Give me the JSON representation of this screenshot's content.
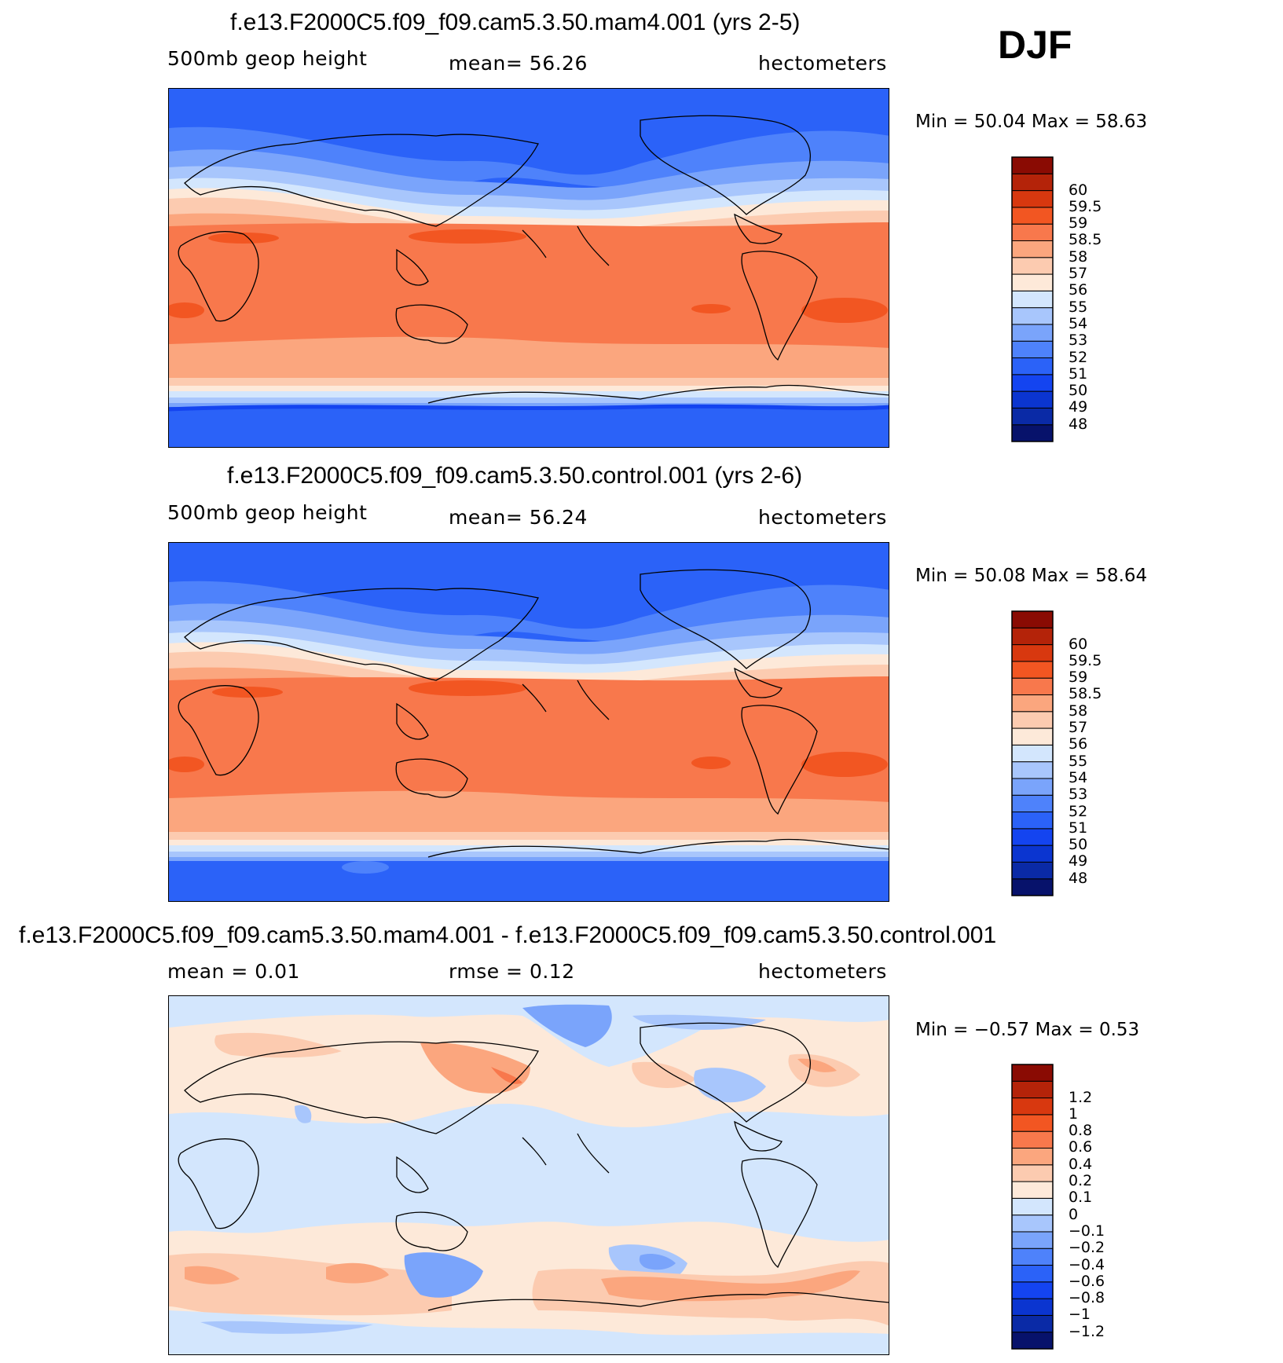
{
  "season": "DJF",
  "panels": [
    {
      "title": "f.e13.F2000C5.f09_f09.cam5.3.50.mam4.001 (yrs 2-5)",
      "left_label": "500mb  geop  height",
      "center_label": "mean=    56.26",
      "right_label": "hectometers",
      "minmax": "Min  =    50.04  Max  =    58.63"
    },
    {
      "title": "f.e13.F2000C5.f09_f09.cam5.3.50.control.001 (yrs 2-6)",
      "left_label": "500mb  geop  height",
      "center_label": "mean=    56.24",
      "right_label": "hectometers",
      "minmax": "Min  =    50.08  Max  =    58.64"
    },
    {
      "title": "f.e13.F2000C5.f09_f09.cam5.3.50.mam4.001 - f.e13.F2000C5.f09_f09.cam5.3.50.control.001",
      "left_label": "mean  =      0.01",
      "center_label": "rmse  =      0.12",
      "right_label": "hectometers",
      "minmax": "Min  =   −0.57  Max  =      0.53"
    }
  ],
  "colorbars": {
    "absolute": {
      "colors": [
        "#07126b",
        "#0a2aa6",
        "#0b35d0",
        "#1444f0",
        "#2b62f8",
        "#4e82fb",
        "#7aa4fb",
        "#a8c6fc",
        "#d3e6fd",
        "#fde9d9",
        "#fccbb0",
        "#fba67e",
        "#f8784c",
        "#f25622",
        "#d8380f",
        "#b42309",
        "#8a0b03"
      ],
      "labels": [
        "48",
        "49",
        "50",
        "51",
        "52",
        "53",
        "54",
        "55",
        "56",
        "57",
        "58",
        "58.5",
        "59",
        "59.5",
        "60"
      ]
    },
    "difference": {
      "colors": [
        "#07126b",
        "#0a2aa6",
        "#0b35d0",
        "#1444f0",
        "#2b62f8",
        "#4e82fb",
        "#7aa4fb",
        "#a8c6fc",
        "#d3e6fd",
        "#fde9d9",
        "#fccbb0",
        "#fba67e",
        "#f8784c",
        "#f25622",
        "#d8380f",
        "#b42309",
        "#8a0b03"
      ],
      "labels": [
        "−1.2",
        "−1",
        "−0.8",
        "−0.6",
        "−0.4",
        "−0.2",
        "−0.1",
        "0",
        "0.1",
        "0.2",
        "0.4",
        "0.6",
        "0.8",
        "1",
        "1.2"
      ]
    }
  },
  "chart_data": [
    {
      "type": "heatmap",
      "title": "f.e13.F2000C5.f09_f09.cam5.3.50.mam4.001 (yrs 2-5)",
      "variable": "500mb  geop  height",
      "units": "hectometers",
      "mean": 56.26,
      "min": 50.04,
      "max": 58.63,
      "levels": [
        48,
        49,
        50,
        51,
        52,
        53,
        54,
        55,
        56,
        57,
        58,
        58.5,
        59,
        59.5,
        60
      ]
    },
    {
      "type": "heatmap",
      "title": "f.e13.F2000C5.f09_f09.cam5.3.50.control.001 (yrs 2-6)",
      "variable": "500mb  geop  height",
      "units": "hectometers",
      "mean": 56.24,
      "min": 50.08,
      "max": 58.64,
      "levels": [
        48,
        49,
        50,
        51,
        52,
        53,
        54,
        55,
        56,
        57,
        58,
        58.5,
        59,
        59.5,
        60
      ]
    },
    {
      "type": "heatmap",
      "title": "f.e13.F2000C5.f09_f09.cam5.3.50.mam4.001 - f.e13.F2000C5.f09_f09.cam5.3.50.control.001",
      "units": "hectometers",
      "mean": 0.01,
      "rmse": 0.12,
      "min": -0.57,
      "max": 0.53,
      "levels": [
        -1.2,
        -1,
        -0.8,
        -0.6,
        -0.4,
        -0.2,
        -0.1,
        0,
        0.1,
        0.2,
        0.4,
        0.6,
        0.8,
        1,
        1.2
      ]
    }
  ]
}
